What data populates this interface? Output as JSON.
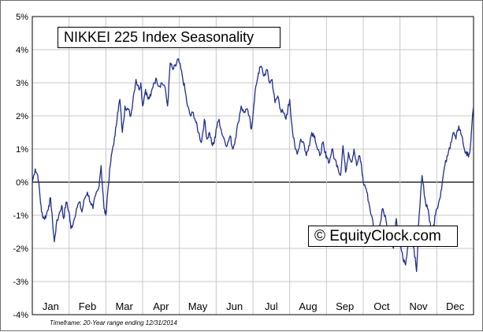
{
  "chart_data": {
    "type": "line",
    "title": "NIKKEI 225 Index Seasonality",
    "xlabel": "",
    "ylabel": "",
    "x_categories": [
      "Jan",
      "Feb",
      "Mar",
      "Apr",
      "May",
      "Jun",
      "Jul",
      "Aug",
      "Sep",
      "Oct",
      "Nov",
      "Dec"
    ],
    "y_tick_labels": [
      "5%",
      "4%",
      "3%",
      "2%",
      "1%",
      "0%",
      "-1%",
      "-2%",
      "-3%",
      "-4%"
    ],
    "ylim": [
      -4,
      5
    ],
    "grid": true,
    "series": [
      {
        "color": "#1f2e8c",
        "x": [
          0,
          0.08,
          0.15,
          0.2,
          0.25,
          0.32,
          0.38,
          0.45,
          0.5,
          0.55,
          0.6,
          0.65,
          0.72,
          0.8,
          0.85,
          0.92,
          1.0,
          1.05,
          1.12,
          1.2,
          1.28,
          1.35,
          1.42,
          1.5,
          1.58,
          1.65,
          1.72,
          1.8,
          1.87,
          1.95,
          2.0,
          2.05,
          2.12,
          2.18,
          2.25,
          2.32,
          2.38,
          2.45,
          2.52,
          2.6,
          2.68,
          2.75,
          2.82,
          2.9,
          2.95,
          3.0,
          3.08,
          3.15,
          3.22,
          3.3,
          3.38,
          3.45,
          3.52,
          3.6,
          3.68,
          3.75,
          3.82,
          3.9,
          3.95,
          4.0,
          4.08,
          4.15,
          4.22,
          4.3,
          4.38,
          4.45,
          4.52,
          4.6,
          4.68,
          4.75,
          4.82,
          4.9,
          4.95,
          5.0,
          5.08,
          5.15,
          5.22,
          5.3,
          5.38,
          5.45,
          5.52,
          5.6,
          5.68,
          5.75,
          5.82,
          5.9,
          5.95,
          6.0,
          6.08,
          6.15,
          6.22,
          6.3,
          6.38,
          6.45,
          6.52,
          6.6,
          6.68,
          6.75,
          6.82,
          6.9,
          6.95,
          7.0,
          7.08,
          7.15,
          7.22,
          7.3,
          7.38,
          7.45,
          7.52,
          7.6,
          7.68,
          7.75,
          7.82,
          7.9,
          7.95,
          8.0,
          8.08,
          8.15,
          8.22,
          8.3,
          8.38,
          8.45,
          8.52,
          8.6,
          8.68,
          8.75,
          8.82,
          8.9,
          8.95,
          9.0,
          9.08,
          9.15,
          9.22,
          9.3,
          9.38,
          9.45,
          9.52,
          9.6,
          9.68,
          9.75,
          9.82,
          9.9,
          9.95,
          10.0,
          10.08,
          10.15,
          10.22,
          10.3,
          10.38,
          10.45,
          10.52,
          10.6,
          10.68,
          10.75,
          10.82,
          10.9,
          10.95,
          11.0,
          11.08,
          11.15,
          11.22,
          11.3,
          11.38,
          11.45,
          11.52,
          11.6,
          11.68,
          11.75,
          11.82,
          11.9,
          12.0
        ],
        "y": [
          0,
          0.4,
          0.2,
          -0.3,
          -0.9,
          -1.1,
          -1.0,
          -0.7,
          -0.5,
          -1.2,
          -1.8,
          -1.3,
          -1.0,
          -0.7,
          -1.1,
          -0.6,
          -0.9,
          -1.4,
          -1.2,
          -0.8,
          -0.6,
          -0.9,
          -0.5,
          -0.3,
          -0.6,
          -0.8,
          -0.4,
          -0.2,
          0.5,
          -0.8,
          -1.0,
          -0.3,
          0.5,
          1.0,
          1.4,
          2.1,
          2.5,
          1.5,
          2.3,
          2.2,
          2.0,
          2.6,
          3.1,
          2.8,
          3.0,
          2.3,
          2.8,
          2.5,
          2.6,
          3.0,
          3.1,
          2.9,
          3.0,
          2.9,
          2.3,
          3.6,
          3.4,
          3.5,
          3.7,
          3.6,
          3.2,
          2.8,
          2.3,
          2.0,
          2.1,
          1.8,
          1.5,
          1.2,
          1.9,
          1.3,
          1.5,
          1.1,
          1.2,
          1.6,
          1.9,
          1.5,
          1.3,
          1.1,
          1.4,
          1.0,
          1.3,
          1.8,
          2.3,
          2.1,
          2.2,
          2.0,
          1.6,
          2.0,
          2.9,
          3.3,
          3.5,
          3.2,
          3.4,
          3.0,
          3.1,
          2.4,
          2.6,
          2.2,
          2.1,
          1.9,
          2.2,
          2.5,
          1.5,
          1.0,
          0.9,
          1.3,
          1.2,
          0.8,
          1.1,
          1.5,
          1.4,
          1.0,
          0.8,
          1.2,
          0.9,
          0.8,
          0.6,
          1.0,
          0.7,
          0.5,
          0.2,
          1.1,
          0.3,
          0.9,
          0.6,
          1.0,
          0.5,
          0.8,
          0.5,
          0.0,
          -0.2,
          -0.6,
          -1.0,
          -1.4,
          -1.9,
          -1.3,
          -0.8,
          -1.0,
          -1.6,
          -1.4,
          -2.0,
          -1.1,
          -1.5,
          -1.8,
          -2.3,
          -2.5,
          -1.9,
          -1.6,
          -2.0,
          -2.7,
          -1.0,
          0.2,
          -0.5,
          -0.8,
          -1.2,
          -1.5,
          -1.0,
          -0.8,
          -0.5,
          0.0,
          0.5,
          0.8,
          1.2,
          1.5,
          1.3,
          1.7,
          1.4,
          1.0,
          0.8,
          0.9,
          2.3
        ]
      }
    ],
    "annotations": [
      "© EquityClock.com",
      "Timeframe: 20-Year range ending 12/31/2014"
    ]
  }
}
